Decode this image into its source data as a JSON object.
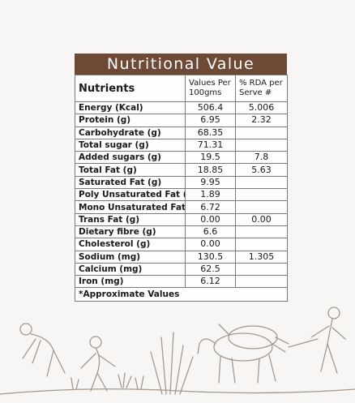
{
  "title": "Nutritional Value",
  "table": {
    "headers": [
      "Nutrients",
      "Values Per 100gms",
      "% RDA per Serve #"
    ],
    "rows": [
      {
        "nutrient": "Energy (Kcal)",
        "value": "506.4",
        "rda": "5.006"
      },
      {
        "nutrient": "Protein (g)",
        "value": "6.95",
        "rda": "2.32"
      },
      {
        "nutrient": "Carbohydrate (g)",
        "value": "68.35",
        "rda": ""
      },
      {
        "nutrient": "Total sugar (g)",
        "value": "71.31",
        "rda": ""
      },
      {
        "nutrient": "Added sugars (g)",
        "value": "19.5",
        "rda": "7.8"
      },
      {
        "nutrient": "Total Fat (g)",
        "value": "18.85",
        "rda": "5.63"
      },
      {
        "nutrient": "Saturated Fat (g)",
        "value": "9.95",
        "rda": ""
      },
      {
        "nutrient": "Poly Unsaturated Fat (g)",
        "value": "1.89",
        "rda": ""
      },
      {
        "nutrient": "Mono Unsaturated Fat (g)",
        "value": "6.72",
        "rda": ""
      },
      {
        "nutrient": "Trans Fat  (g)",
        "value": "0.00",
        "rda": "0.00"
      },
      {
        "nutrient": "Dietary fibre (g)",
        "value": "6.6",
        "rda": ""
      },
      {
        "nutrient": "Cholesterol (g)",
        "value": "0.00",
        "rda": ""
      },
      {
        "nutrient": "Sodium (mg)",
        "value": "130.5",
        "rda": "1.305"
      },
      {
        "nutrient": "Calcium (mg)",
        "value": "62.5",
        "rda": ""
      },
      {
        "nutrient": "Iron (mg)",
        "value": "6.12",
        "rda": ""
      }
    ],
    "footnote": "*Approximate Values"
  },
  "colors": {
    "title_bar": "#6e4936",
    "background": "#f7f6f4",
    "illustration": "#8a7a6c"
  },
  "illustration": "farming-scene-illustration"
}
